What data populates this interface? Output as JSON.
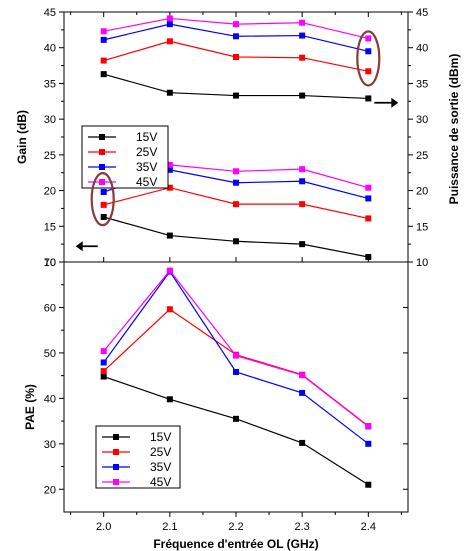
{
  "chart_data": [
    {
      "type": "line",
      "panel": "top",
      "x": [
        2.0,
        2.1,
        2.2,
        2.3,
        2.4
      ],
      "xlim": [
        1.94,
        2.46
      ],
      "ylabel": "Gain (dB)",
      "ylim": [
        10,
        45
      ],
      "yticks": [
        10,
        15,
        20,
        25,
        30,
        35,
        40,
        45
      ],
      "y2label": "Puissance de sortie (dBm)",
      "y2lim": [
        10,
        45
      ],
      "y2ticks": [
        10,
        15,
        20,
        25,
        30,
        35,
        40,
        45
      ],
      "legend": {
        "placement": "left",
        "entries": [
          "15V",
          "25V",
          "35V",
          "45V"
        ]
      },
      "series": [
        {
          "name": "15V",
          "group": "gain",
          "color": "#000000",
          "values": [
            36.3,
            33.7,
            33.3,
            33.3,
            32.9
          ]
        },
        {
          "name": "25V",
          "group": "gain",
          "color": "#ff0000",
          "values": [
            38.2,
            40.9,
            38.7,
            38.6,
            36.7
          ]
        },
        {
          "name": "35V",
          "group": "gain",
          "color": "#0000ff",
          "values": [
            41.1,
            43.3,
            41.6,
            41.7,
            39.5
          ]
        },
        {
          "name": "45V",
          "group": "gain",
          "color": "#ff00ff",
          "values": [
            42.3,
            44.1,
            43.3,
            43.5,
            41.3
          ]
        },
        {
          "name": "15V",
          "group": "pout",
          "color": "#000000",
          "values": [
            16.3,
            13.7,
            12.9,
            12.5,
            10.7
          ]
        },
        {
          "name": "25V",
          "group": "pout",
          "color": "#ff0000",
          "values": [
            18.0,
            20.4,
            18.1,
            18.1,
            16.1
          ]
        },
        {
          "name": "35V",
          "group": "pout",
          "color": "#0000ff",
          "values": [
            19.8,
            22.9,
            21.1,
            21.3,
            18.9
          ]
        },
        {
          "name": "45V",
          "group": "pout",
          "color": "#ff00ff",
          "values": [
            21.2,
            23.6,
            22.7,
            23.0,
            20.4
          ]
        }
      ]
    },
    {
      "type": "line",
      "panel": "bottom",
      "x": [
        2.0,
        2.1,
        2.2,
        2.3,
        2.4
      ],
      "xlim": [
        1.94,
        2.46
      ],
      "xticks": [
        2.0,
        2.1,
        2.2,
        2.3,
        2.4
      ],
      "xtick_labels": [
        "2.0",
        "2.1",
        "2.2",
        "2.3",
        "2.4"
      ],
      "xlabel": "Fréquence d'entrée OL (GHz)",
      "ylabel": "PAE (%)",
      "ylim": [
        15,
        70
      ],
      "yticks": [
        20,
        30,
        40,
        50,
        60,
        70
      ],
      "legend": {
        "placement": "bottom-left",
        "entries": [
          "15V",
          "25V",
          "35V",
          "45V"
        ]
      },
      "series": [
        {
          "name": "15V",
          "color": "#000000",
          "values": [
            44.8,
            39.8,
            35.5,
            30.2,
            21.0
          ]
        },
        {
          "name": "25V",
          "color": "#ff0000",
          "values": [
            46.0,
            59.6,
            49.6,
            45.2,
            33.9
          ]
        },
        {
          "name": "35V",
          "color": "#0000ff",
          "values": [
            47.9,
            67.9,
            45.8,
            41.2,
            30.0
          ]
        },
        {
          "name": "45V",
          "color": "#ff00ff",
          "values": [
            50.4,
            68.1,
            49.4,
            45.1,
            33.8
          ]
        }
      ]
    }
  ]
}
